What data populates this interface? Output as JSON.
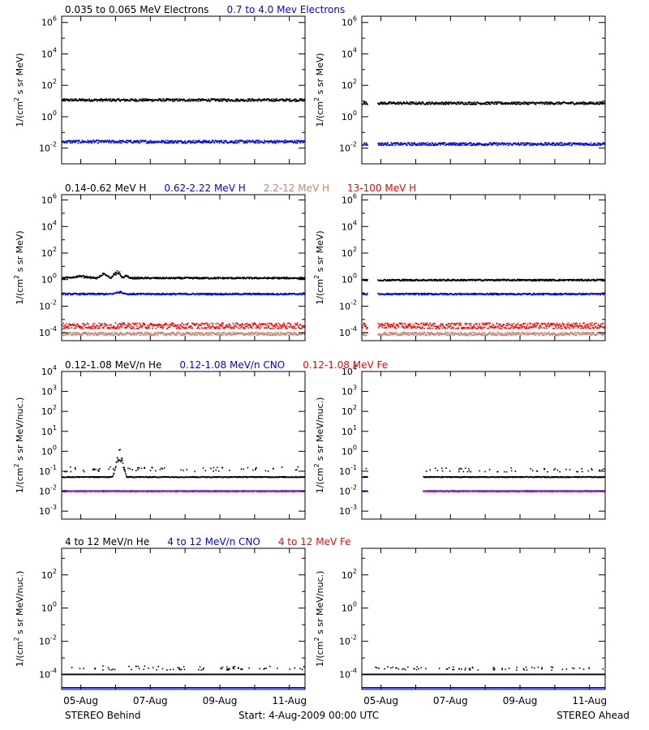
{
  "colors": {
    "black": "#000000",
    "blue": "#0000ff",
    "tan": "#c8826e",
    "red": "#ff0000",
    "axis": "#000000",
    "background": "#ffffff"
  },
  "footer": {
    "left": "STEREO Behind",
    "center": "Start:  4-Aug-2009 00:00 UTC",
    "right": "STEREO Ahead"
  },
  "x_axis": {
    "unit": "days since start",
    "range": [
      0.45,
      7.45
    ],
    "tick_values": [
      1,
      3,
      5,
      7
    ],
    "tick_labels": [
      "05-Aug",
      "07-Aug",
      "09-Aug",
      "11-Aug"
    ]
  },
  "chart_data": [
    {
      "type": "scatter",
      "panel": "electrons-behind",
      "spacecraft": "STEREO Behind",
      "ylabel_base": "1/(cm",
      "ylabel_sup": "2",
      "ylabel_rest": " s sr MeV)",
      "yscale": "log",
      "ylim_exp": [
        -3,
        6.4
      ],
      "ytick_exp": [
        -2,
        0,
        2,
        4,
        6
      ],
      "ytick_base": "10",
      "ytick_style": "power",
      "legend": [
        {
          "text": "0.035 to 0.065 MeV Electrons",
          "color": "#000000"
        },
        {
          "text": "0.7 to 4.0 Mev Electrons",
          "color": "#0000ff"
        }
      ],
      "series": [
        {
          "name": "0.035 to 0.065 MeV Electrons",
          "color": "#000000",
          "level_exp": 1.05,
          "noise": 0.08,
          "bumps": []
        },
        {
          "name": "0.7 to 4.0 Mev Electrons",
          "color": "#0000ff",
          "level_exp": -1.6,
          "noise": 0.09,
          "bumps": []
        }
      ]
    },
    {
      "type": "scatter",
      "panel": "electrons-ahead",
      "spacecraft": "STEREO Ahead",
      "ylabel_base": "1/(cm",
      "ylabel_sup": "2",
      "ylabel_rest": " s sr MeV)",
      "yscale": "log",
      "ylim_exp": [
        -3,
        6.4
      ],
      "ytick_exp": [
        -2,
        0,
        2,
        4,
        6
      ],
      "ytick_base": "10",
      "ytick_style": "power",
      "legend": [],
      "gap": [
        0.6,
        0.9
      ],
      "series": [
        {
          "name": "0.035 to 0.065 MeV Electrons",
          "color": "#000000",
          "level_exp": 0.85,
          "noise": 0.08,
          "bumps": []
        },
        {
          "name": "0.7 to 4.0 Mev Electrons",
          "color": "#0000ff",
          "level_exp": -1.75,
          "noise": 0.09,
          "bumps": []
        }
      ]
    },
    {
      "type": "scatter",
      "panel": "protons-behind",
      "spacecraft": "STEREO Behind",
      "ylabel_base": "1/(cm",
      "ylabel_sup": "2",
      "ylabel_rest": " s sr MeV)",
      "yscale": "log",
      "ylim_exp": [
        -4.6,
        6.4
      ],
      "ytick_exp": [
        -4,
        -2,
        0,
        2,
        4,
        6
      ],
      "ytick_base": "10",
      "ytick_style": "power",
      "legend": [
        {
          "text": "0.14-0.62 MeV H",
          "color": "#000000"
        },
        {
          "text": "0.62-2.22 MeV H",
          "color": "#0000ff"
        },
        {
          "text": "2.2-12 MeV H",
          "color": "#c8826e"
        },
        {
          "text": "13-100 MeV H",
          "color": "#ff0000"
        }
      ],
      "series": [
        {
          "name": "0.14-0.62 MeV H",
          "color": "#000000",
          "level_exp": 0.1,
          "noise": 0.06,
          "bumps": [
            [
              0.5,
              1.45,
              0.15
            ],
            [
              1.45,
              1.85,
              0.35
            ],
            [
              1.85,
              2.2,
              0.6
            ],
            [
              2.2,
              2.4,
              0.2
            ]
          ]
        },
        {
          "name": "0.62-2.22 MeV H",
          "color": "#0000ff",
          "level_exp": -1.1,
          "noise": 0.06,
          "bumps": [
            [
              1.9,
              2.3,
              0.2
            ]
          ]
        },
        {
          "name": "2.2-12 MeV H",
          "color": "#c8826e",
          "level_exp": -4.1,
          "noise": 0.12,
          "bumps": []
        },
        {
          "name": "13-100 MeV H",
          "color": "#ff0000",
          "level_exp": -3.5,
          "noise": 0.22,
          "bumps": []
        }
      ]
    },
    {
      "type": "scatter",
      "panel": "protons-ahead",
      "spacecraft": "STEREO Ahead",
      "ylabel_base": "1/(cm",
      "ylabel_sup": "2",
      "ylabel_rest": " s sr MeV)",
      "yscale": "log",
      "ylim_exp": [
        -4.6,
        6.4
      ],
      "ytick_exp": [
        -4,
        -2,
        0,
        2,
        4,
        6
      ],
      "ytick_base": "10",
      "ytick_style": "power",
      "legend": [],
      "gap": [
        0.6,
        0.9
      ],
      "series": [
        {
          "name": "0.14-0.62 MeV H",
          "color": "#000000",
          "level_exp": -0.05,
          "noise": 0.06,
          "bumps": []
        },
        {
          "name": "0.62-2.22 MeV H",
          "color": "#0000ff",
          "level_exp": -1.1,
          "noise": 0.06,
          "bumps": []
        },
        {
          "name": "2.2-12 MeV H",
          "color": "#c8826e",
          "level_exp": -4.1,
          "noise": 0.12,
          "bumps": []
        },
        {
          "name": "13-100 MeV H",
          "color": "#ff0000",
          "level_exp": -3.5,
          "noise": 0.22,
          "bumps": []
        }
      ]
    },
    {
      "type": "scatter",
      "panel": "he-cno-fe-low-behind",
      "spacecraft": "STEREO Behind",
      "ylabel_base": "1/(cm",
      "ylabel_sup": "2",
      "ylabel_rest": " s sr MeV/nuc.)",
      "yscale": "log",
      "ylim_exp": [
        -3.4,
        4
      ],
      "ytick_exp": [
        -3,
        -2,
        -1,
        0,
        1,
        2,
        3,
        4
      ],
      "ytick_base": "10",
      "ytick_style": "power",
      "legend": [
        {
          "text": "0.12-1.08 MeV/n He",
          "color": "#000000"
        },
        {
          "text": "0.12-1.08 MeV/n CNO",
          "color": "#0000ff"
        },
        {
          "text": "0.12-1.08 MeV Fe",
          "color": "#ff0000"
        }
      ],
      "series": [
        {
          "name": "0.12-1.08 MeV/n He",
          "color": "#000000",
          "level_exp": -1.3,
          "noise": 0.02,
          "bumps": [
            [
              1.9,
              2.3,
              1.3
            ]
          ],
          "sparse": [
            -1.0,
            -0.75
          ]
        },
        {
          "name": "0.12-1.08 MeV/n CNO",
          "color": "#0000ff",
          "level_exp": -2.0,
          "noise": 0.01,
          "bumps": []
        },
        {
          "name": "0.12-1.08 MeV Fe",
          "color": "#ff0000",
          "level_exp": -2.02,
          "noise": 0.01,
          "bumps": [],
          "dashed": true
        }
      ]
    },
    {
      "type": "scatter",
      "panel": "he-cno-fe-low-ahead",
      "spacecraft": "STEREO Ahead",
      "ylabel_base": "1/(cm",
      "ylabel_sup": "2",
      "ylabel_rest": " s sr MeV/nuc.)",
      "yscale": "log",
      "ylim_exp": [
        -3.4,
        4
      ],
      "ytick_exp": [
        -3,
        -2,
        -1,
        0,
        1,
        2,
        3,
        4
      ],
      "ytick_base": "10",
      "ytick_style": "power",
      "legend": [],
      "gap": [
        0.6,
        2.2
      ],
      "series": [
        {
          "name": "0.12-1.08 MeV/n He",
          "color": "#000000",
          "level_exp": -1.3,
          "noise": 0.02,
          "bumps": [],
          "sparse": [
            -1.0,
            -0.8
          ]
        },
        {
          "name": "0.12-1.08 MeV/n CNO",
          "color": "#0000ff",
          "level_exp": -2.0,
          "noise": 0.01,
          "bumps": []
        },
        {
          "name": "0.12-1.08 MeV Fe",
          "color": "#ff0000",
          "level_exp": -2.02,
          "noise": 0.01,
          "bumps": [],
          "dashed": true
        }
      ]
    },
    {
      "type": "scatter",
      "panel": "he-cno-fe-high-behind",
      "spacecraft": "STEREO Behind",
      "ylabel_base": "1/(cm",
      "ylabel_sup": "2",
      "ylabel_rest": " s sr MeV/nuc.)",
      "yscale": "log",
      "ylim_exp": [
        -4.9,
        3.6
      ],
      "ytick_exp": [
        -4,
        -2,
        0,
        2
      ],
      "ytick_base": "10",
      "ytick_style": "power",
      "legend": [
        {
          "text": "4 to 12 MeV/n He",
          "color": "#000000"
        },
        {
          "text": "4 to 12 MeV/n CNO",
          "color": "#0000ff"
        },
        {
          "text": "4 to 12 MeV Fe",
          "color": "#ff0000"
        }
      ],
      "series": [
        {
          "name": "4 to 12 MeV/n He",
          "color": "#000000",
          "level_exp": -4.0,
          "noise": 0.0,
          "bumps": [],
          "sparse": [
            -3.7,
            -3.45
          ]
        },
        {
          "name": "4 to 12 MeV/n CNO",
          "color": "#0000ff",
          "level_exp": -4.0,
          "noise": 0.0,
          "bumps": [],
          "bottom": true
        }
      ]
    },
    {
      "type": "scatter",
      "panel": "he-cno-fe-high-ahead",
      "spacecraft": "STEREO Ahead",
      "ylabel_base": "1/(cm",
      "ylabel_sup": "2",
      "ylabel_rest": " s sr MeV/nuc.)",
      "yscale": "log",
      "ylim_exp": [
        -4.9,
        3.6
      ],
      "ytick_exp": [
        -4,
        -2,
        0,
        2
      ],
      "ytick_base": "10",
      "ytick_style": "power",
      "legend": [],
      "series": [
        {
          "name": "4 to 12 MeV/n He",
          "color": "#000000",
          "level_exp": -4.0,
          "noise": 0.0,
          "bumps": [],
          "sparse": [
            -3.7,
            -3.5
          ]
        },
        {
          "name": "4 to 12 MeV/n CNO",
          "color": "#0000ff",
          "level_exp": -4.0,
          "noise": 0.0,
          "bumps": [],
          "bottom": true
        }
      ]
    }
  ]
}
